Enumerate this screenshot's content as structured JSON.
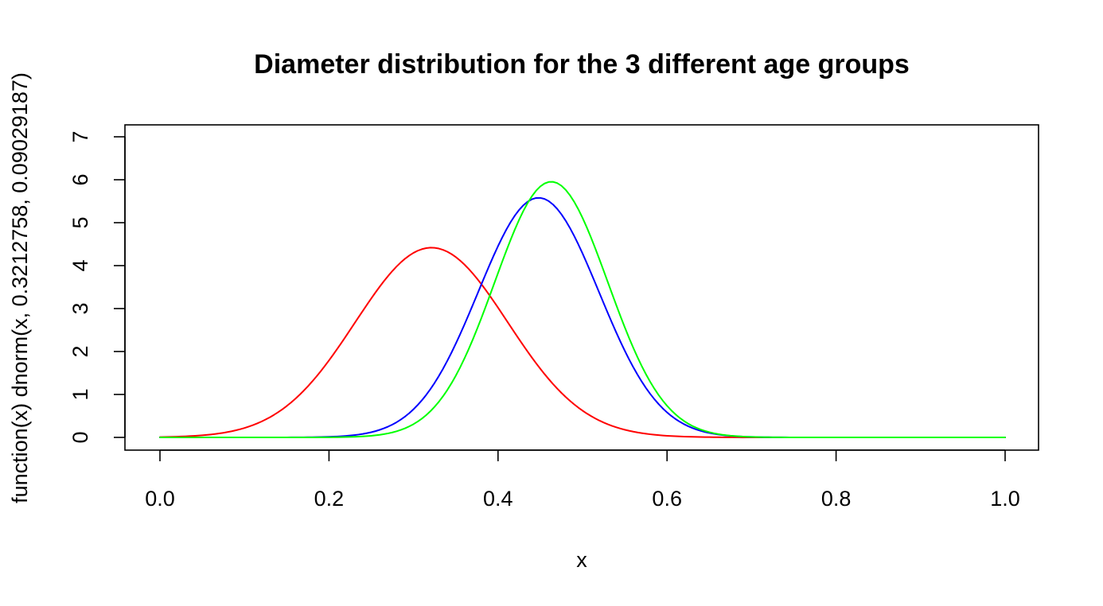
{
  "chart_data": {
    "type": "line",
    "title": "Diameter distribution for the 3 different age groups",
    "xlabel": "x",
    "ylabel": "function(x) dnorm(x, 0.3212758, 0.09029187)",
    "xlim": [
      0,
      1
    ],
    "ylim": [
      0,
      7
    ],
    "xticks": [
      "0.0",
      "0.2",
      "0.4",
      "0.6",
      "0.8",
      "1.0"
    ],
    "yticks": [
      "0",
      "1",
      "2",
      "3",
      "4",
      "5",
      "6",
      "7"
    ],
    "grid": false,
    "legend": "none",
    "series": [
      {
        "color": "#ff0000",
        "function": "dnorm",
        "mean": 0.3212758,
        "sd": 0.09029187
      },
      {
        "color": "#0000ff",
        "function": "dnorm",
        "mean": 0.448,
        "sd": 0.0715
      },
      {
        "color": "#00ff00",
        "function": "dnorm",
        "mean": 0.463,
        "sd": 0.067
      }
    ]
  }
}
